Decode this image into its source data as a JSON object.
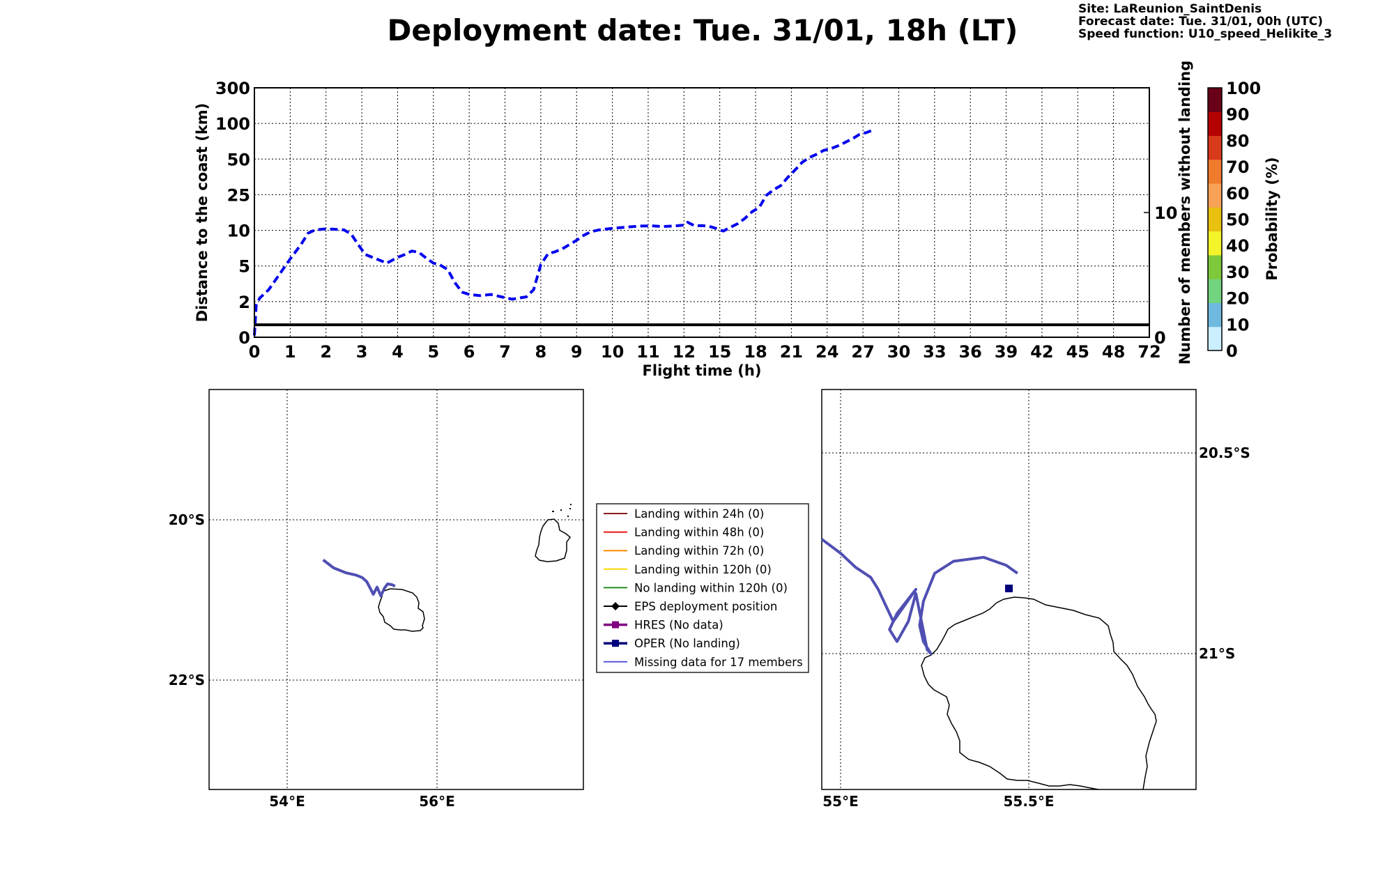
{
  "header": {
    "title": "Deployment date: Tue. 31/01, 18h (LT)",
    "site": "Site: LaReunion_SaintDenis",
    "forecast": "Forecast date: Tue. 31/01, 00h (UTC)",
    "speed": "Speed function: U10_speed_Helikite_3"
  },
  "chart_data": [
    {
      "type": "line",
      "xlabel": "Flight time (h)",
      "ylabel": "Distance to the coast (km)",
      "ylabel_right": "Number of members without landing",
      "x_ticks": [
        "0",
        "1",
        "2",
        "3",
        "4",
        "5",
        "6",
        "7",
        "8",
        "9",
        "10",
        "11",
        "12",
        "15",
        "18",
        "21",
        "24",
        "27",
        "30",
        "33",
        "36",
        "39",
        "42",
        "45",
        "48",
        "72"
      ],
      "y_ticks": [
        "0",
        "2",
        "5",
        "10",
        "25",
        "50",
        "100",
        "300"
      ],
      "y_ticks_right": [
        "0",
        "10"
      ],
      "y_right_range": [
        0,
        20
      ],
      "grid": true,
      "series": [
        {
          "kind": "dashed",
          "color": "#0000ee",
          "x": [
            0,
            0.05,
            0.15,
            0.4,
            0.7,
            1,
            1.3,
            1.5,
            1.7,
            2,
            2.2,
            2.5,
            2.7,
            2.9,
            3.1,
            3.3,
            3.5,
            3.7,
            4,
            4.2,
            4.4,
            4.6,
            4.8,
            5,
            5.2,
            5.4,
            5.6,
            5.8,
            6,
            6.3,
            6.6,
            6.9,
            7.2,
            7.4,
            7.6,
            7.8,
            8,
            8.2,
            8.4,
            8.6,
            8.8,
            9,
            9.2,
            9.4,
            9.6,
            9.8,
            10,
            10.2,
            10.5,
            10.8,
            11.1,
            11.4,
            11.7,
            12,
            12.3,
            12.9,
            13.5,
            14.1,
            14.7,
            15.3,
            15.9,
            16.5,
            17.1,
            17.7,
            18.3,
            18.9,
            19.5,
            20.1,
            20.7,
            21.3,
            21.9,
            22.5,
            23.1,
            23.7,
            24.3,
            24.9,
            25.5,
            26.1,
            26.7,
            27.3,
            27.9
          ],
          "y": [
            0.1,
            1.8,
            2.3,
            3,
            4.3,
            6,
            8,
            9.6,
            10.2,
            10.6,
            10.5,
            10.2,
            9.5,
            8,
            6.6,
            6.2,
            5.8,
            5.4,
            6.2,
            6.6,
            7.1,
            6.9,
            6.1,
            5.4,
            5.1,
            4.7,
            3.6,
            2.8,
            2.6,
            2.5,
            2.6,
            2.4,
            2.2,
            2.3,
            2.4,
            3,
            5.2,
            6.7,
            7,
            7.4,
            8,
            8.6,
            9.3,
            9.8,
            10.1,
            10.5,
            10.8,
            11.1,
            11.5,
            11.8,
            11.9,
            11.6,
            11.8,
            12.2,
            13.4,
            11.9,
            12,
            11.7,
            10.8,
            9.9,
            11.3,
            12.8,
            15,
            17.8,
            19.6,
            24.7,
            28.4,
            31.3,
            37.2,
            42.2,
            47.7,
            52.1,
            56.6,
            62.1,
            64.6,
            68.6,
            73.4,
            78.3,
            84.6,
            87.2,
            91.1
          ]
        },
        {
          "kind": "solid",
          "color": "#000000",
          "x": [
            0,
            72
          ],
          "y_right": [
            1,
            1
          ]
        }
      ]
    },
    {
      "type": "colorbar",
      "label": "Probability (%)",
      "ticks": [
        "0",
        "10",
        "20",
        "30",
        "40",
        "50",
        "60",
        "70",
        "80",
        "90",
        "100"
      ],
      "colors": [
        "#ccefff",
        "#6fb8e0",
        "#72d47e",
        "#7ec83b",
        "#f4f42a",
        "#e8c010",
        "#f7a257",
        "#f07b2c",
        "#d83a1c",
        "#b40000",
        "#680018"
      ]
    },
    {
      "type": "map",
      "x_ticks": [
        "54°E",
        "56°E"
      ],
      "y_ticks": [
        "20°S",
        "22°S"
      ],
      "track": {
        "color": "#4f4fb3",
        "lon": [
          54.48,
          54.62,
          54.78,
          54.92,
          55.0,
          55.06,
          55.1,
          55.15,
          55.2,
          55.25,
          55.3,
          55.34,
          55.4,
          55.44
        ],
        "lat": [
          -20.5,
          -20.6,
          -20.66,
          -20.69,
          -20.72,
          -20.77,
          -20.84,
          -20.93,
          -20.84,
          -20.95,
          -20.85,
          -20.8,
          -20.81,
          -20.83
        ]
      }
    },
    {
      "type": "map",
      "x_ticks": [
        "55°E",
        "55.5°E"
      ],
      "y_ticks_right": [
        "20.5°S",
        "21°S"
      ],
      "track": {
        "color": "#4f4fb3",
        "lon": [
          54.95,
          55.0,
          55.04,
          55.08,
          55.1,
          55.12,
          55.14,
          55.2,
          55.15,
          55.13,
          55.15,
          55.18,
          55.2,
          55.23,
          55.24,
          55.22,
          55.21,
          55.22,
          55.25,
          55.3,
          55.38,
          55.44,
          55.47
        ],
        "lat": [
          -20.715,
          -20.75,
          -20.785,
          -20.81,
          -20.84,
          -20.88,
          -20.92,
          -20.84,
          -20.9,
          -20.94,
          -20.97,
          -20.92,
          -20.85,
          -20.99,
          -21.0,
          -20.97,
          -20.93,
          -20.87,
          -20.8,
          -20.77,
          -20.76,
          -20.78,
          -20.8
        ]
      }
    }
  ],
  "legend": {
    "items": [
      {
        "label": "Landing within 24h (0)",
        "color": "#8b1a1a",
        "marker": "none"
      },
      {
        "label": "Landing within 48h (0)",
        "color": "#ee1111",
        "marker": "none"
      },
      {
        "label": "Landing within 72h (0)",
        "color": "#ff8c00",
        "marker": "none"
      },
      {
        "label": "Landing within 120h (0)",
        "color": "#ffd700",
        "marker": "none"
      },
      {
        "label": "No landing within 120h (0)",
        "color": "#228b22",
        "marker": "none"
      },
      {
        "label": "EPS deployment position",
        "color": "#000000",
        "marker": "diamond"
      },
      {
        "label": "HRES (No data)",
        "color": "#800080",
        "marker": "square"
      },
      {
        "label": "OPER (No landing)",
        "color": "#00007a",
        "marker": "square"
      },
      {
        "label": "Missing data for 17 members",
        "color": "#5555dd",
        "marker": "none"
      }
    ]
  }
}
